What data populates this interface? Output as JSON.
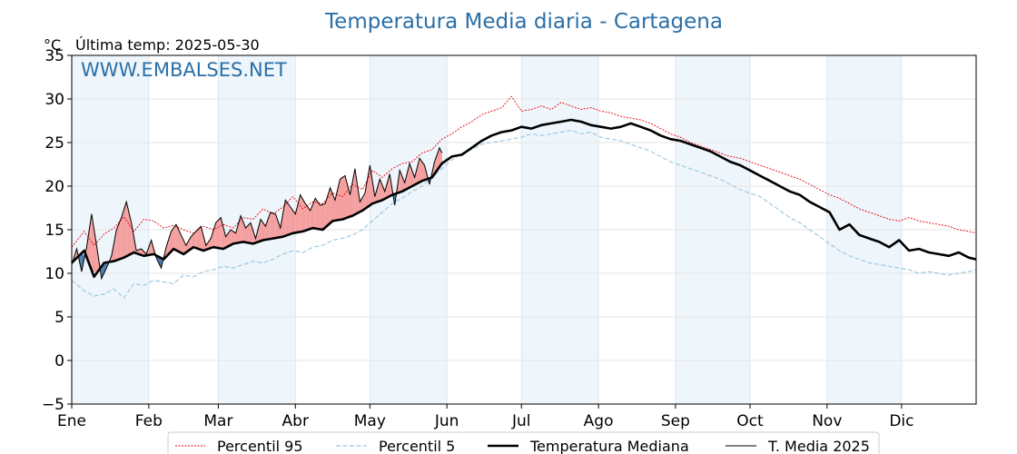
{
  "chart_data": {
    "type": "line",
    "title": "Temperatura Media diaria - Cartagena",
    "unit": "°C",
    "last_temp_label": "Última temp: 2025-05-30",
    "watermark": "WWW.EMBALSES.NET",
    "ylim": [
      -5,
      35
    ],
    "yticks": [
      -5,
      0,
      5,
      10,
      15,
      20,
      25,
      30,
      35
    ],
    "ytick_labels": [
      "−5",
      "0",
      "5",
      "10",
      "15",
      "20",
      "25",
      "30",
      "35"
    ],
    "month_labels": [
      "Ene",
      "Feb",
      "Mar",
      "Abr",
      "May",
      "Jun",
      "Jul",
      "Ago",
      "Sep",
      "Oct",
      "Nov",
      "Dic"
    ],
    "grid": true,
    "legend_position": "bottom",
    "colors": {
      "p95": "#e8000b",
      "p5": "#9ecae1",
      "median": "#000000",
      "current": "#000000",
      "above_fill": "#f4a0a0",
      "below_fill": "#4f7fae",
      "title": "#2a6fa8",
      "band": "#eef5fb"
    },
    "series": [
      {
        "name": "Percentil 95",
        "style": "dotted",
        "x": [
          1,
          6,
          10,
          14,
          18,
          22,
          26,
          30,
          34,
          38,
          42,
          46,
          50,
          54,
          58,
          62,
          66,
          70,
          74,
          78,
          82,
          86,
          90,
          94,
          98,
          102,
          106,
          110,
          114,
          118,
          122,
          126,
          130,
          134,
          138,
          142,
          146,
          150,
          154,
          158,
          162,
          166,
          170,
          174,
          178,
          182,
          186,
          190,
          194,
          198,
          202,
          206,
          210,
          214,
          218,
          222,
          226,
          230,
          234,
          238,
          242,
          246,
          250,
          254,
          258,
          262,
          266,
          270,
          274,
          278,
          282,
          286,
          290,
          294,
          298,
          302,
          306,
          310,
          314,
          318,
          322,
          326,
          330,
          334,
          338,
          342,
          346,
          350,
          354,
          358,
          362,
          365
        ],
        "values": [
          13.0,
          14.8,
          13.2,
          14.5,
          15.2,
          16.5,
          14.8,
          16.2,
          16.0,
          15.2,
          15.5,
          15.0,
          14.6,
          15.4,
          15.0,
          15.6,
          15.2,
          16.4,
          16.2,
          17.4,
          16.8,
          17.6,
          18.8,
          17.4,
          18.2,
          18.0,
          19.2,
          18.8,
          20.2,
          19.6,
          21.8,
          21.0,
          22.0,
          22.6,
          22.8,
          23.8,
          24.2,
          25.4,
          26.0,
          26.8,
          27.4,
          28.2,
          28.6,
          29.0,
          30.3,
          28.6,
          28.8,
          29.2,
          28.8,
          29.6,
          29.2,
          28.8,
          29.0,
          28.6,
          28.4,
          28.0,
          27.8,
          27.6,
          27.2,
          26.6,
          26.0,
          25.6,
          25.0,
          24.6,
          24.2,
          23.8,
          23.4,
          23.2,
          22.8,
          22.4,
          22.0,
          21.6,
          21.2,
          20.8,
          20.2,
          19.6,
          19.0,
          18.6,
          18.0,
          17.4,
          17.0,
          16.6,
          16.2,
          16.0,
          16.4,
          16.0,
          15.8,
          15.6,
          15.4,
          15.0,
          14.8,
          14.6
        ]
      },
      {
        "name": "Percentil 5",
        "style": "dashed",
        "x": [
          1,
          6,
          10,
          14,
          18,
          22,
          26,
          30,
          34,
          38,
          42,
          46,
          50,
          54,
          58,
          62,
          66,
          70,
          74,
          78,
          82,
          86,
          90,
          94,
          98,
          102,
          106,
          110,
          114,
          118,
          122,
          126,
          130,
          134,
          138,
          142,
          146,
          150,
          154,
          158,
          162,
          166,
          170,
          174,
          178,
          182,
          186,
          190,
          194,
          198,
          202,
          206,
          210,
          214,
          218,
          222,
          226,
          230,
          234,
          238,
          242,
          246,
          250,
          254,
          258,
          262,
          266,
          270,
          274,
          278,
          282,
          286,
          290,
          294,
          298,
          302,
          306,
          310,
          314,
          318,
          322,
          326,
          330,
          334,
          338,
          342,
          346,
          350,
          354,
          358,
          362,
          365
        ],
        "values": [
          9.2,
          8.0,
          7.4,
          7.6,
          8.2,
          7.2,
          8.8,
          8.6,
          9.2,
          9.0,
          8.8,
          9.8,
          9.6,
          10.2,
          10.4,
          10.8,
          10.6,
          11.0,
          11.4,
          11.2,
          11.6,
          12.2,
          12.6,
          12.4,
          13.0,
          13.2,
          13.8,
          14.0,
          14.4,
          15.0,
          16.0,
          17.0,
          18.0,
          18.6,
          19.4,
          20.0,
          21.0,
          22.0,
          23.0,
          23.8,
          24.2,
          24.8,
          25.0,
          25.2,
          25.4,
          25.6,
          26.0,
          25.8,
          26.0,
          26.2,
          26.4,
          26.0,
          26.2,
          25.6,
          25.4,
          25.2,
          24.8,
          24.4,
          24.0,
          23.4,
          22.8,
          22.4,
          22.0,
          21.6,
          21.2,
          20.8,
          20.2,
          19.6,
          19.2,
          18.8,
          18.0,
          17.2,
          16.4,
          15.8,
          15.0,
          14.2,
          13.4,
          12.6,
          12.0,
          11.6,
          11.2,
          11.0,
          10.8,
          10.6,
          10.4,
          10.0,
          10.2,
          10.0,
          9.8,
          10.0,
          10.2,
          10.4
        ]
      },
      {
        "name": "Temperatura Mediana",
        "style": "solid-thick",
        "x": [
          1,
          6,
          10,
          14,
          18,
          22,
          26,
          30,
          34,
          38,
          42,
          46,
          50,
          54,
          58,
          62,
          66,
          70,
          74,
          78,
          82,
          86,
          90,
          94,
          98,
          102,
          106,
          110,
          114,
          118,
          122,
          126,
          130,
          134,
          138,
          142,
          146,
          150,
          154,
          158,
          162,
          166,
          170,
          174,
          178,
          182,
          186,
          190,
          194,
          198,
          202,
          206,
          210,
          214,
          218,
          222,
          226,
          230,
          234,
          238,
          242,
          246,
          250,
          254,
          258,
          262,
          266,
          270,
          274,
          278,
          282,
          286,
          290,
          294,
          298,
          302,
          306,
          310,
          314,
          318,
          322,
          326,
          330,
          334,
          338,
          342,
          346,
          350,
          354,
          358,
          362,
          365
        ],
        "values": [
          11.2,
          12.6,
          9.6,
          11.2,
          11.4,
          11.8,
          12.4,
          12.0,
          12.2,
          11.6,
          12.8,
          12.2,
          13.0,
          12.6,
          13.0,
          12.8,
          13.4,
          13.6,
          13.4,
          13.8,
          14.0,
          14.2,
          14.6,
          14.8,
          15.2,
          15.0,
          16.0,
          16.2,
          16.6,
          17.2,
          18.0,
          18.4,
          19.0,
          19.4,
          20.0,
          20.6,
          21.0,
          22.6,
          23.4,
          23.6,
          24.4,
          25.2,
          25.8,
          26.2,
          26.4,
          26.8,
          26.6,
          27.0,
          27.2,
          27.4,
          27.6,
          27.4,
          27.0,
          26.8,
          26.6,
          26.8,
          27.2,
          26.8,
          26.4,
          25.8,
          25.4,
          25.2,
          24.8,
          24.4,
          24.0,
          23.4,
          22.8,
          22.4,
          21.8,
          21.2,
          20.6,
          20.0,
          19.4,
          19.0,
          18.2,
          17.6,
          17.0,
          15.0,
          15.6,
          14.4,
          14.0,
          13.6,
          13.0,
          13.8,
          12.6,
          12.8,
          12.4,
          12.2,
          12.0,
          12.4,
          11.8,
          11.6
        ]
      },
      {
        "name": "T. Media 2025",
        "style": "solid-thin",
        "x": [
          1,
          3,
          5,
          7,
          9,
          11,
          13,
          15,
          17,
          19,
          21,
          23,
          25,
          27,
          29,
          31,
          33,
          35,
          37,
          39,
          41,
          43,
          45,
          47,
          49,
          51,
          53,
          55,
          57,
          59,
          61,
          63,
          65,
          67,
          69,
          71,
          73,
          75,
          77,
          79,
          81,
          83,
          85,
          87,
          89,
          91,
          93,
          95,
          97,
          99,
          101,
          103,
          105,
          107,
          109,
          111,
          113,
          115,
          117,
          119,
          121,
          123,
          125,
          127,
          129,
          131,
          133,
          135,
          137,
          139,
          141,
          143,
          145,
          147,
          149,
          150
        ],
        "values": [
          11.0,
          12.8,
          10.2,
          13.0,
          16.8,
          13.2,
          9.4,
          10.6,
          12.0,
          15.0,
          16.4,
          18.2,
          15.8,
          12.6,
          12.8,
          12.2,
          13.8,
          11.8,
          10.6,
          13.0,
          14.8,
          15.6,
          14.4,
          13.2,
          14.2,
          14.8,
          15.4,
          13.2,
          14.0,
          15.8,
          16.4,
          14.2,
          15.0,
          14.6,
          16.6,
          15.2,
          15.8,
          14.0,
          16.2,
          15.4,
          17.0,
          16.8,
          15.2,
          18.4,
          17.6,
          16.8,
          19.0,
          18.0,
          17.2,
          18.6,
          17.8,
          18.0,
          19.8,
          18.4,
          20.8,
          21.2,
          19.0,
          22.0,
          18.2,
          19.2,
          22.4,
          18.8,
          20.8,
          19.4,
          21.4,
          17.8,
          21.8,
          20.4,
          22.6,
          21.0,
          23.2,
          22.4,
          20.2,
          22.8,
          24.4,
          23.8
        ]
      }
    ],
    "legend": [
      "Percentil 95",
      "Percentil 5",
      "Temperatura Mediana",
      "T. Media 2025"
    ]
  }
}
